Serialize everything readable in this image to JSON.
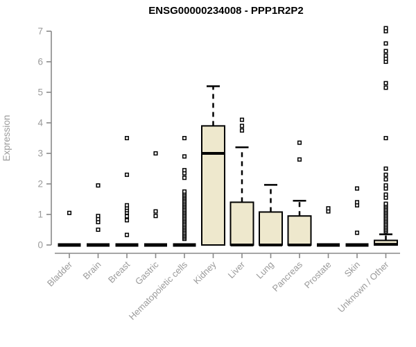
{
  "chart_data": {
    "type": "boxplot",
    "title": "ENSG00000234008 - PPP1R2P2",
    "ylabel": "Expression",
    "xlabel": "",
    "ylim": [
      0,
      7
    ],
    "yticks": [
      0,
      1,
      2,
      3,
      4,
      5,
      6,
      7
    ],
    "grid": false,
    "legend": "none",
    "categories": [
      "Bladder",
      "Brain",
      "Breast",
      "Gastric",
      "Hematopoietic cells",
      "Kidney",
      "Liver",
      "Lung",
      "Pancreas",
      "Prostate",
      "Skin",
      "Unknown / Other"
    ],
    "boxes": [
      {
        "category": "Bladder",
        "whisker_low": 0,
        "q1": 0,
        "median": 0,
        "q3": 0,
        "whisker_high": 0,
        "outliers": [
          1.05
        ]
      },
      {
        "category": "Brain",
        "whisker_low": 0,
        "q1": 0,
        "median": 0,
        "q3": 0,
        "whisker_high": 0,
        "outliers": [
          0.5,
          0.75,
          0.85,
          0.95,
          1.95
        ]
      },
      {
        "category": "Breast",
        "whisker_low": 0,
        "q1": 0,
        "median": 0,
        "q3": 0,
        "whisker_high": 0,
        "outliers": [
          0.33,
          0.81,
          0.94,
          1.06,
          1.14,
          1.22,
          1.3,
          2.3,
          3.5
        ]
      },
      {
        "category": "Gastric",
        "whisker_low": 0,
        "q1": 0,
        "median": 0,
        "q3": 0,
        "whisker_high": 0,
        "outliers": [
          0.95,
          1.1,
          3.0
        ]
      },
      {
        "category": "Hematopoietic cells",
        "whisker_low": 0,
        "q1": 0,
        "median": 0,
        "q3": 0,
        "whisker_high": 0,
        "outliers": [
          0.2,
          0.25,
          0.3,
          0.35,
          0.4,
          0.45,
          0.5,
          0.55,
          0.6,
          0.65,
          0.7,
          0.75,
          0.8,
          0.85,
          0.9,
          0.95,
          1.0,
          1.05,
          1.1,
          1.15,
          1.2,
          1.25,
          1.3,
          1.35,
          1.4,
          1.45,
          1.5,
          1.55,
          1.6,
          1.65,
          1.7,
          1.75,
          2.2,
          2.35,
          2.45,
          2.9,
          3.5
        ]
      },
      {
        "category": "Kidney",
        "whisker_low": 0,
        "q1": 0,
        "median": 3.0,
        "q3": 3.9,
        "whisker_high": 5.2,
        "outliers": []
      },
      {
        "category": "Liver",
        "whisker_low": 0,
        "q1": 0,
        "median": 0,
        "q3": 1.4,
        "whisker_high": 3.2,
        "outliers": [
          3.75,
          3.9,
          4.1
        ]
      },
      {
        "category": "Lung",
        "whisker_low": 0,
        "q1": 0,
        "median": 0,
        "q3": 1.08,
        "whisker_high": 1.97,
        "outliers": []
      },
      {
        "category": "Pancreas",
        "whisker_low": 0,
        "q1": 0,
        "median": 0,
        "q3": 0.95,
        "whisker_high": 1.45,
        "outliers": [
          2.8,
          3.35
        ]
      },
      {
        "category": "Prostate",
        "whisker_low": 0,
        "q1": 0,
        "median": 0,
        "q3": 0,
        "whisker_high": 0,
        "outliers": [
          1.1,
          1.2
        ]
      },
      {
        "category": "Skin",
        "whisker_low": 0,
        "q1": 0,
        "median": 0,
        "q3": 0,
        "whisker_high": 0,
        "outliers": [
          0.4,
          1.3,
          1.4,
          1.85
        ]
      },
      {
        "category": "Unknown / Other",
        "whisker_low": 0,
        "q1": 0,
        "median": 0.02,
        "q3": 0.15,
        "whisker_high": 0.35,
        "outliers": [
          0.45,
          0.5,
          0.55,
          0.6,
          0.65,
          0.7,
          0.75,
          0.8,
          0.85,
          0.9,
          0.95,
          1.0,
          1.05,
          1.1,
          1.15,
          1.2,
          1.25,
          1.3,
          1.35,
          1.55,
          1.65,
          1.85,
          1.95,
          2.15,
          2.3,
          2.5,
          3.5,
          5.15,
          5.3,
          6.0,
          6.1,
          6.2,
          6.35,
          6.6,
          7.0,
          7.1
        ]
      }
    ],
    "colors": {
      "box_fill": "#EEE8CD",
      "box_stroke": "#000000",
      "median": "#000000",
      "whisker": "#000000",
      "axis": "#888888",
      "tick_label": "#9a9a9a",
      "title": "#000000",
      "background": "#ffffff",
      "outlier_fill": "#ffffff",
      "outlier_stroke": "#000000"
    }
  }
}
